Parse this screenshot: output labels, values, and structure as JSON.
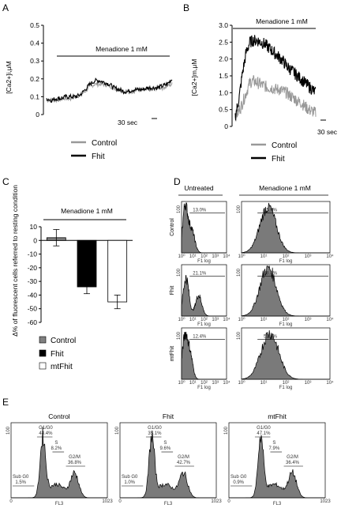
{
  "panels": {
    "A": {
      "label": "A"
    },
    "B": {
      "label": "B"
    },
    "C": {
      "label": "C"
    },
    "D": {
      "label": "D"
    },
    "E": {
      "label": "E"
    }
  },
  "chart_data": [
    {
      "id": "A",
      "type": "line",
      "ylabel": "[Ca2+]i,μM",
      "ylim": [
        0,
        0.5
      ],
      "yticks": [
        "0",
        "0.1",
        "0.2",
        "0.3",
        "0.4",
        "0.5"
      ],
      "annotation": "Menadione 1 mM",
      "scale_bar": "30 sec",
      "series": [
        {
          "name": "Control",
          "color": "#999999",
          "values": [
            0.08,
            0.08,
            0.08,
            0.09,
            0.09,
            0.09,
            0.1,
            0.11,
            0.13,
            0.16,
            0.17,
            0.17,
            0.17,
            0.16,
            0.15,
            0.14,
            0.13,
            0.13,
            0.13,
            0.14,
            0.14,
            0.14,
            0.14,
            0.15,
            0.15,
            0.16,
            0.17
          ]
        },
        {
          "name": "Fhit",
          "color": "#000000",
          "values": [
            0.09,
            0.08,
            0.09,
            0.09,
            0.1,
            0.1,
            0.1,
            0.11,
            0.14,
            0.17,
            0.19,
            0.19,
            0.18,
            0.17,
            0.15,
            0.14,
            0.13,
            0.13,
            0.14,
            0.14,
            0.14,
            0.15,
            0.15,
            0.15,
            0.16,
            0.17,
            0.2
          ]
        }
      ]
    },
    {
      "id": "B",
      "type": "line",
      "ylabel": "[Ca2+]m,μM",
      "ylim": [
        0,
        3.0
      ],
      "yticks": [
        "0",
        "0.5",
        "1.0",
        "1.5",
        "2.0",
        "2.5",
        "3.0"
      ],
      "annotation": "Menadione 1 mM",
      "scale_bar": "30 sec",
      "series": [
        {
          "name": "Control",
          "color": "#999999",
          "values": [
            0.3,
            0.45,
            0.7,
            1.0,
            1.3,
            1.35,
            1.3,
            1.25,
            1.2,
            1.15,
            1.15,
            1.1,
            1.1,
            1.05,
            1.0,
            0.9,
            0.85,
            0.75,
            0.7,
            0.6,
            0.5,
            0.45,
            0.4
          ]
        },
        {
          "name": "Fhit",
          "color": "#000000",
          "values": [
            0.3,
            0.8,
            1.6,
            2.2,
            2.5,
            2.55,
            2.55,
            2.5,
            2.45,
            2.35,
            2.25,
            2.15,
            2.05,
            1.95,
            1.8,
            1.7,
            1.6,
            1.5,
            1.4,
            1.3,
            1.2,
            1.1,
            1.0
          ]
        }
      ]
    },
    {
      "id": "C",
      "type": "bar",
      "ylabel": "Δ% of fluorescent cells referred to resting condition",
      "ylim": [
        -60,
        10
      ],
      "yticks": [
        "10",
        "0",
        "-10",
        "-20",
        "-30",
        "-40",
        "-50",
        "-60"
      ],
      "annotation": "Menadione 1 mM",
      "categories": [
        "Control",
        "Fhit",
        "mtFhit"
      ],
      "values": [
        2,
        -34,
        -45
      ],
      "errors": [
        6,
        5,
        5
      ],
      "colors": [
        "#808080",
        "#000000",
        "#ffffff"
      ]
    },
    {
      "id": "D",
      "type": "histogram",
      "column_headers": [
        "Untreated",
        "Menadione 1 mM"
      ],
      "row_labels": [
        "Control",
        "Fhit",
        "mtFhit"
      ],
      "percentages": [
        [
          "13.0%",
          "35.6%"
        ],
        [
          "21.1%",
          "38.3%"
        ],
        [
          "12.4%",
          "52.5%"
        ]
      ],
      "xlabel": "F1 log",
      "y_tick_label": "100",
      "x_tick_labels": [
        "10⁰",
        "10¹",
        "10²",
        "10³",
        "10⁴"
      ]
    },
    {
      "id": "E",
      "type": "histogram",
      "xlabel": "FL3",
      "x_tick_min": "0",
      "x_tick_max": "1023",
      "y_tick_label": "100",
      "panels": [
        {
          "title": "Control",
          "g1": "48.4%",
          "s": "8.2%",
          "g2m": "36.8%",
          "subg0": "1.5%"
        },
        {
          "title": "Fhit",
          "g1": "35.1%",
          "s": "9.6%",
          "g2m": "42.7%",
          "subg0": "1.0%"
        },
        {
          "title": "mtFhit",
          "g1": "47.1%",
          "s": "7.9%",
          "g2m": "36.4%",
          "subg0": "0.9%"
        }
      ],
      "phase_labels": {
        "g1": "G1/G0",
        "s": "S",
        "g2m": "G2/M",
        "subg0": "Sub G0"
      }
    }
  ]
}
